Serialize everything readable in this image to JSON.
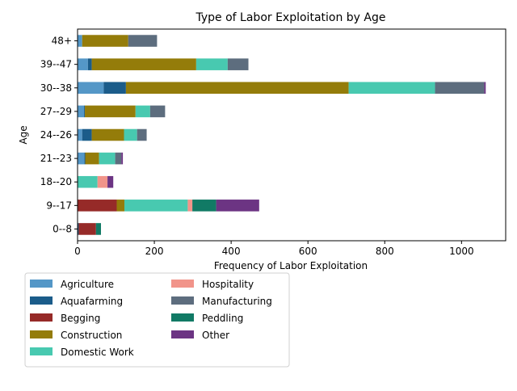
{
  "chart_data": {
    "type": "bar",
    "orientation": "horizontal",
    "stacked": true,
    "title": "Type of Labor Exploitation by Age",
    "xlabel": "Frequency of Labor Exploitation",
    "ylabel": "Age",
    "xlim": [
      0,
      1115
    ],
    "xticks": [
      0,
      200,
      400,
      600,
      800,
      1000
    ],
    "grid": false,
    "legend_position": "below-left",
    "categories": [
      "0--8",
      "9--17",
      "18--20",
      "21--23",
      "24--26",
      "27--29",
      "30--38",
      "39--47",
      "48+"
    ],
    "series": [
      {
        "name": "Agriculture",
        "color": "#5497c7",
        "values": [
          0,
          0,
          0,
          18,
          12,
          17,
          68,
          27,
          12
        ]
      },
      {
        "name": "Aquafarming",
        "color": "#1b5c8a",
        "values": [
          3,
          0,
          0,
          2,
          25,
          2,
          58,
          10,
          0
        ]
      },
      {
        "name": "Begging",
        "color": "#962a28",
        "values": [
          45,
          102,
          0,
          0,
          0,
          0,
          0,
          0,
          0
        ]
      },
      {
        "name": "Construction",
        "color": "#947c0a",
        "values": [
          0,
          20,
          0,
          36,
          84,
          132,
          580,
          272,
          120
        ]
      },
      {
        "name": "Domestic Work",
        "color": "#48c9b0",
        "values": [
          0,
          165,
          52,
          42,
          34,
          38,
          225,
          82,
          0
        ]
      },
      {
        "name": "Hospitality",
        "color": "#f1948a",
        "values": [
          0,
          12,
          26,
          0,
          0,
          0,
          0,
          0,
          0
        ]
      },
      {
        "name": "Manufacturing",
        "color": "#5d6d7e",
        "values": [
          0,
          0,
          0,
          16,
          25,
          39,
          128,
          54,
          75
        ]
      },
      {
        "name": "Peddling",
        "color": "#117a65",
        "values": [
          13,
          62,
          0,
          0,
          0,
          0,
          0,
          0,
          0
        ]
      },
      {
        "name": "Other",
        "color": "#6c3483",
        "values": [
          0,
          112,
          15,
          4,
          0,
          0,
          4,
          0,
          0
        ]
      }
    ]
  }
}
